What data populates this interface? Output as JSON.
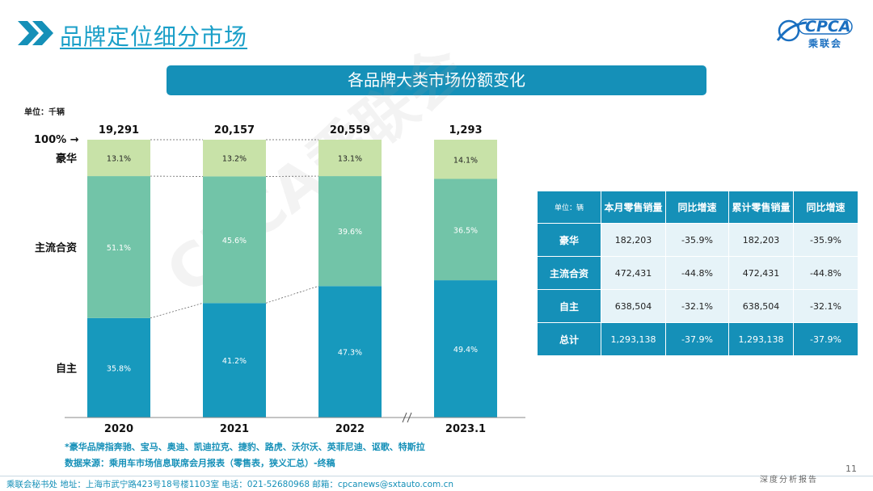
{
  "header": {
    "title": "品牌定位细分市场",
    "logo_text": "CPCA",
    "logo_sub": "乘联会"
  },
  "banner": {
    "title": "各品牌大类市场份额变化"
  },
  "unit_label": "单位：千辆",
  "chart_data": {
    "type": "bar",
    "stacked": true,
    "normalized": true,
    "categories": [
      "2020",
      "2021",
      "2022",
      "2023.1"
    ],
    "totals": [
      "19,291",
      "20,157",
      "20,559",
      "1,293"
    ],
    "series": [
      {
        "name": "自主",
        "values": [
          35.8,
          41.2,
          47.3,
          49.4
        ],
        "labels": [
          "35.8%",
          "41.2%",
          "47.3%",
          "49.4%"
        ],
        "color": "#1799bd"
      },
      {
        "name": "主流合资",
        "values": [
          51.1,
          45.6,
          39.6,
          36.5
        ],
        "labels": [
          "51.1%",
          "45.6%",
          "39.6%",
          "36.5%"
        ],
        "color": "#72c4a8"
      },
      {
        "name": "豪华",
        "values": [
          13.1,
          13.2,
          13.1,
          14.1
        ],
        "labels": [
          "13.1%",
          "13.2%",
          "13.1%",
          "14.1%"
        ],
        "color": "#c8e2a8"
      }
    ],
    "axis_marker": "100% →",
    "ylim": [
      0,
      100
    ]
  },
  "table": {
    "headers": [
      "单位：辆",
      "本月零售销量",
      "同比增速",
      "累计零售销量",
      "同比增速"
    ],
    "rows": [
      {
        "label": "豪华",
        "cells": [
          "182,203",
          "-35.9%",
          "182,203",
          "-35.9%"
        ]
      },
      {
        "label": "主流合资",
        "cells": [
          "472,431",
          "-44.8%",
          "472,431",
          "-44.8%"
        ]
      },
      {
        "label": "自主",
        "cells": [
          "638,504",
          "-32.1%",
          "638,504",
          "-32.1%"
        ]
      }
    ],
    "total": {
      "label": "总计",
      "cells": [
        "1,293,138",
        "-37.9%",
        "1,293,138",
        "-37.9%"
      ]
    }
  },
  "notes": {
    "luxury_note": "*豪华品牌指奔驰、宝马、奥迪、凯迪拉克、捷豹、路虎、沃尔沃、英菲尼迪、讴歌、特斯拉",
    "source": "数据来源：乘用车市场信息联席会月报表（零售表，狭义汇总）-终稿"
  },
  "footer": {
    "address": "乘联会秘书处   地址：上海市武宁路423号18号楼1103室  电话：021-52680968   邮箱：cpcanews@sxtauto.com.cn",
    "right": "深度分析报告",
    "page_number": "11"
  },
  "watermark": "CPCA乘联会"
}
